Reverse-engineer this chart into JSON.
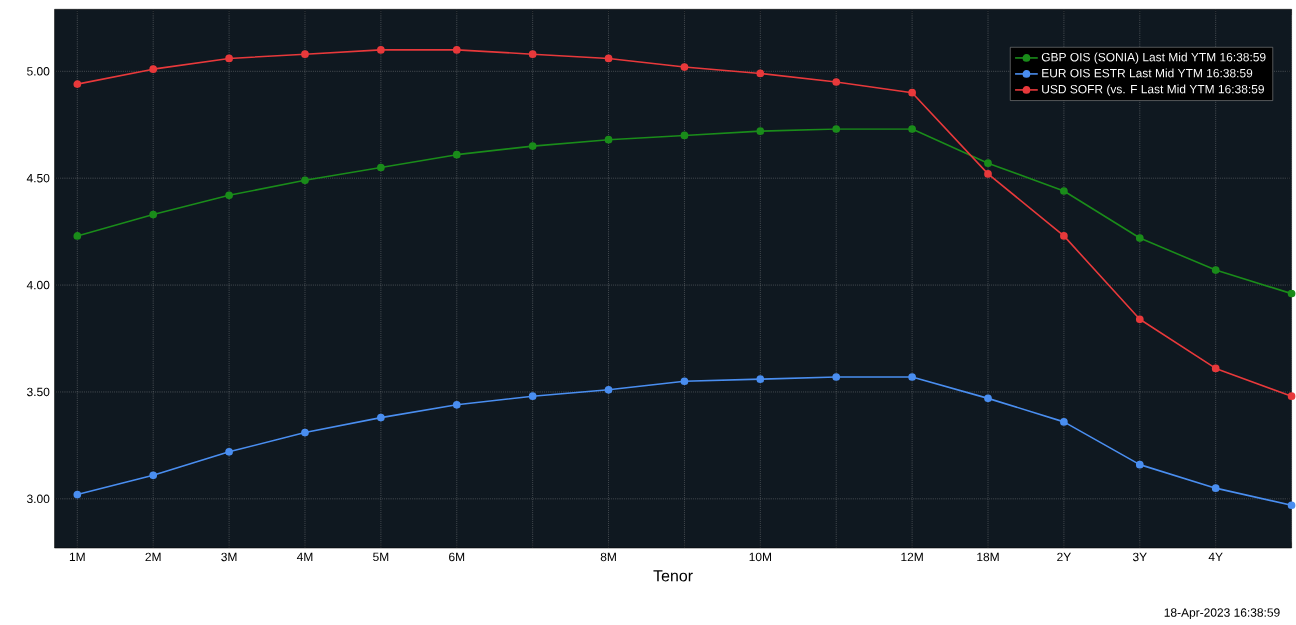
{
  "chart_data": {
    "type": "line",
    "xlabel": "Tenor",
    "categories": [
      "1M",
      "2M",
      "3M",
      "4M",
      "5M",
      "6M",
      null,
      "8M",
      null,
      "10M",
      null,
      "12M",
      "18M",
      "2Y",
      "3Y",
      "4Y",
      null
    ],
    "series": [
      {
        "name": "GBP OIS (SONIA) Last Mid YTM 16:38:59",
        "color": "#1a8c1a",
        "values": [
          4.23,
          4.33,
          4.42,
          4.49,
          4.55,
          4.61,
          4.65,
          4.68,
          4.7,
          4.72,
          4.73,
          4.73,
          4.57,
          4.44,
          4.22,
          4.07,
          3.96
        ]
      },
      {
        "name": "EUR OIS ESTR Last Mid YTM 16:38:59",
        "color": "#4a8ef0",
        "values": [
          3.02,
          3.11,
          3.22,
          3.31,
          3.38,
          3.44,
          3.48,
          3.51,
          3.55,
          3.56,
          3.57,
          3.57,
          3.47,
          3.36,
          3.16,
          3.05,
          2.97
        ]
      },
      {
        "name": "USD SOFR (vs. F Last Mid YTM 16:38:59",
        "color": "#e8393b",
        "values": [
          4.94,
          5.01,
          5.06,
          5.08,
          5.1,
          5.1,
          5.08,
          5.06,
          5.02,
          4.99,
          4.95,
          4.9,
          4.52,
          4.23,
          3.84,
          3.61,
          3.48
        ]
      }
    ],
    "ylim": [
      2.77,
      5.29
    ],
    "yticks": [
      {
        "value": 3,
        "label": "3.00"
      },
      {
        "value": 3.5,
        "label": "3.50"
      },
      {
        "value": 4,
        "label": "4.00"
      },
      {
        "value": 4.5,
        "label": "4.50"
      },
      {
        "value": 5,
        "label": "5.00"
      }
    ],
    "grid": true,
    "legend": "top right",
    "marker": "circle",
    "line_style": "solid",
    "annotations": [
      "18-Apr-2023 16:38:59"
    ]
  }
}
